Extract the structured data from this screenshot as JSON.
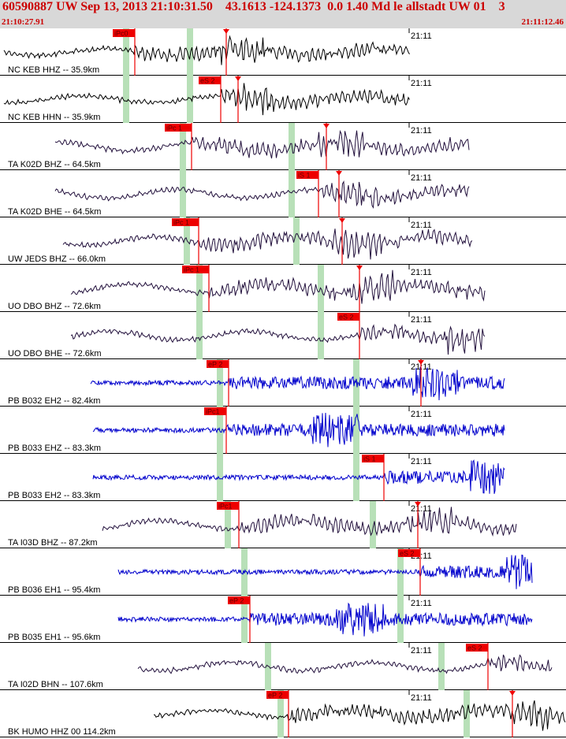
{
  "header": {
    "title": "60590887 UW Sep 13, 2013 21:10:31.50    43.1613 -124.1373  0.0 1.40 Md le allstadt UW 01    3",
    "start_time": "21:10:27.91",
    "end_time": "21:11:12.46"
  },
  "minute_label": "21:11",
  "colors": {
    "header_bg": "#d8d8d8",
    "header_text": "#cc0000",
    "pick": "#ee0000",
    "window": "#b8e0b8",
    "trace_short_period": "#0000cc",
    "trace_broadband": "#000000"
  },
  "channels": [
    {
      "label": "NC KEB HHZ -- 35.9km",
      "color": "black",
      "picks": [
        {
          "label": "iPc0",
          "t": 171
        },
        {
          "label": "",
          "t": 287
        }
      ],
      "windows": [
        160,
        241
      ],
      "signal": [
        5,
        520
      ]
    },
    {
      "label": "NC KEB HHN -- 35.9km",
      "color": "black",
      "picks": [
        {
          "label": "eS 2",
          "t": 280
        },
        {
          "label": "",
          "t": 302
        }
      ],
      "windows": [
        160,
        241
      ],
      "signal": [
        5,
        520
      ]
    },
    {
      "label": "TA K02D BHZ -- 64.5km",
      "color": "purple",
      "picks": [
        {
          "label": "iPc 1",
          "t": 243
        },
        {
          "label": "",
          "t": 414
        }
      ],
      "windows": [
        232,
        370
      ],
      "signal": [
        70,
        595
      ]
    },
    {
      "label": "TA K02D BHE -- 64.5km",
      "color": "purple",
      "picks": [
        {
          "label": "iS 1",
          "t": 404
        },
        {
          "label": "",
          "t": 430
        }
      ],
      "windows": [
        232,
        370
      ],
      "signal": [
        70,
        595
      ]
    },
    {
      "label": "UW JEDS BHZ -- 66.0km",
      "color": "purple",
      "picks": [
        {
          "label": "iPc 1",
          "t": 252
        },
        {
          "label": "",
          "t": 434
        }
      ],
      "windows": [
        237,
        376
      ],
      "signal": [
        80,
        600
      ]
    },
    {
      "label": "UO DBO BHZ -- 72.6km",
      "color": "purple",
      "picks": [
        {
          "label": "iPc 1",
          "t": 265
        },
        {
          "label": "",
          "t": 456
        }
      ],
      "windows": [
        253,
        407
      ],
      "signal": [
        90,
        615
      ]
    },
    {
      "label": "UO DBO BHE -- 72.6km",
      "color": "purple",
      "picks": [
        {
          "label": "eS 2",
          "t": 456
        }
      ],
      "windows": [
        253,
        407
      ],
      "signal": [
        90,
        615
      ]
    },
    {
      "label": "PB B032 EH2 -- 82.4km",
      "color": "blue",
      "picks": [
        {
          "label": "eP 2",
          "t": 290
        },
        {
          "label": "",
          "t": 534
        }
      ],
      "windows": [
        279,
        452
      ],
      "signal": [
        115,
        640
      ]
    },
    {
      "label": "PB B033 EHZ -- 83.3km",
      "color": "blue",
      "picks": [
        {
          "label": "iPc1",
          "t": 287
        }
      ],
      "windows": [
        279,
        452
      ],
      "signal": [
        118,
        640
      ]
    },
    {
      "label": "PB B033 EH2 -- 83.3km",
      "color": "blue",
      "picks": [
        {
          "label": "iS 1",
          "t": 487
        }
      ],
      "windows": [
        279,
        452
      ],
      "signal": [
        118,
        640
      ]
    },
    {
      "label": "TA I03D BHZ -- 87.2km",
      "color": "purple",
      "picks": [
        {
          "label": "iPc1",
          "t": 303
        },
        {
          "label": "",
          "t": 530
        }
      ],
      "windows": [
        289,
        473
      ],
      "signal": [
        130,
        655
      ]
    },
    {
      "label": "PB B036 EH1 -- 95.4km",
      "color": "blue",
      "picks": [
        {
          "label": "eS 2",
          "t": 533
        }
      ],
      "windows": [
        310,
        508
      ],
      "signal": [
        150,
        675
      ]
    },
    {
      "label": "PB B035 EH1 -- 95.6km",
      "color": "blue",
      "picks": [
        {
          "label": "eP 2",
          "t": 317
        }
      ],
      "windows": [
        310,
        508
      ],
      "signal": [
        150,
        675
      ]
    },
    {
      "label": "TA I02D BHN -- 107.6km",
      "color": "purple",
      "picks": [
        {
          "label": "eS 2",
          "t": 619
        }
      ],
      "windows": [
        340,
        560
      ],
      "signal": [
        175,
        700
      ]
    },
    {
      "label": "BK HUMO HHZ 00 114.2km",
      "color": "black",
      "picks": [
        {
          "label": "eP 2",
          "t": 366
        },
        {
          "label": "",
          "t": 650
        }
      ],
      "windows": [
        356,
        592
      ],
      "signal": [
        195,
        718
      ]
    }
  ]
}
